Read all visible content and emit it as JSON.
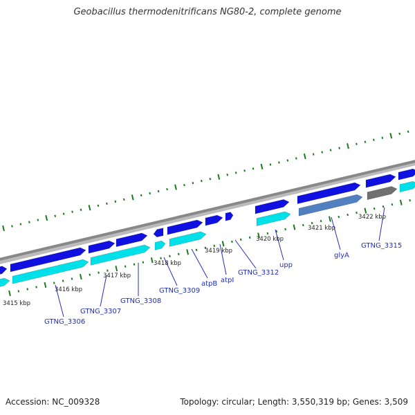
{
  "title": "Geobacillus thermodenitrificans NG80-2, complete genome",
  "footer": {
    "accession": "Accession: NC_009328",
    "topology": "Topology: circular; Length: 3,550,319 bp; Genes: 3,509"
  },
  "colors": {
    "gene_forward": "#1010e0",
    "gene_reverse_cds": "#00e0e8",
    "gene_rna": "#5080c0",
    "gene_other": "#707070",
    "backbone": "#888888",
    "ticks": "#1a7a1a",
    "label": "#1f2ebd"
  },
  "scale": {
    "kbp_labels": [
      "3415 kbp",
      "3416 kbp",
      "3417 kbp",
      "3418 kbp",
      "3419 kbp",
      "3420 kbp",
      "3421 kbp",
      "3422 kbp"
    ]
  },
  "genes": {
    "labels": [
      "GTNG_3306",
      "GTNG_3307",
      "GTNG_3308",
      "GTNG_3309",
      "atpB",
      "atpI",
      "GTNG_3312",
      "upp",
      "glyA",
      "GTNG_3315"
    ]
  }
}
